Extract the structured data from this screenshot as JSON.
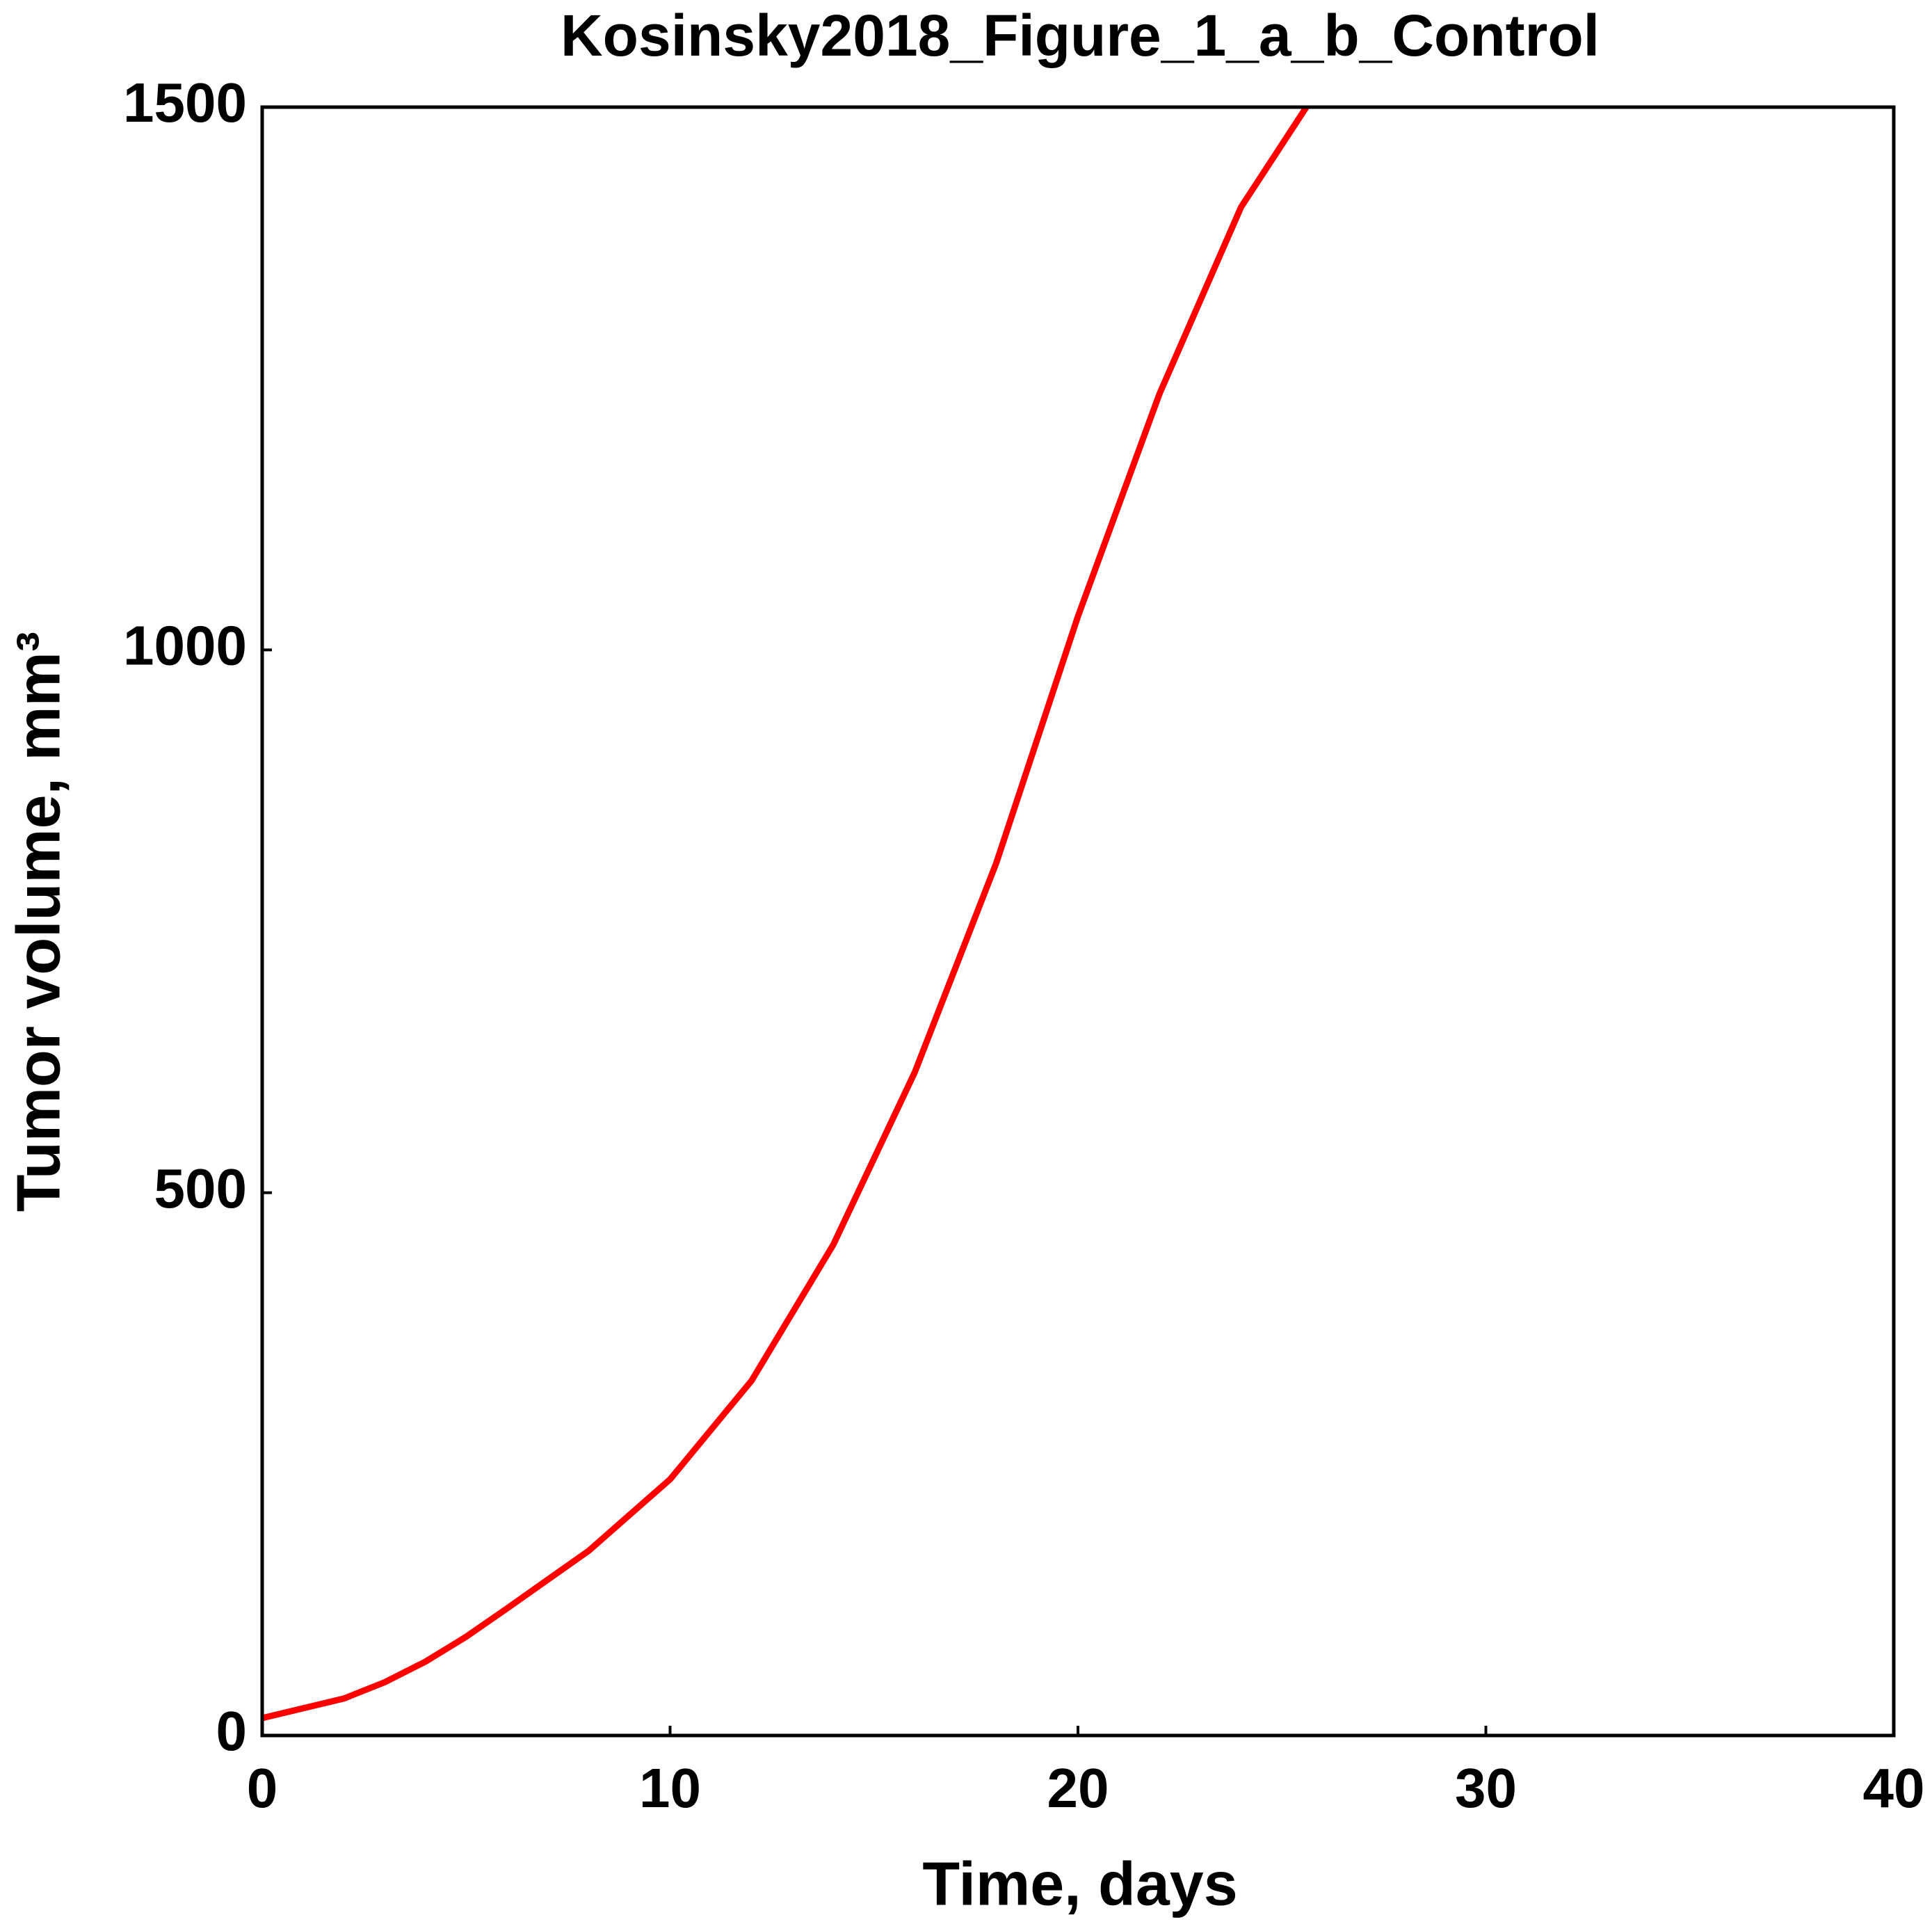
{
  "chart_data": {
    "type": "line",
    "title": "Kosinsky2018_Figure_1_a_b_Control",
    "x_label": "Time, days",
    "y_label": "Tumor volume, mm³",
    "x": [
      0,
      2,
      3,
      4,
      5,
      6,
      8,
      10,
      12,
      14,
      16,
      18,
      20,
      22,
      24,
      25.6
    ],
    "values": [
      16,
      34,
      49,
      68,
      91,
      117,
      170,
      236,
      327,
      452,
      611,
      804,
      1031,
      1236,
      1408,
      1500
    ],
    "color": "#ff0000",
    "xlim": [
      0,
      40
    ],
    "xticks": [
      0,
      10,
      20,
      30,
      40
    ],
    "ylim": [
      0,
      1500
    ],
    "yticks": [
      0,
      500,
      1000,
      1500
    ],
    "grid": false
  }
}
